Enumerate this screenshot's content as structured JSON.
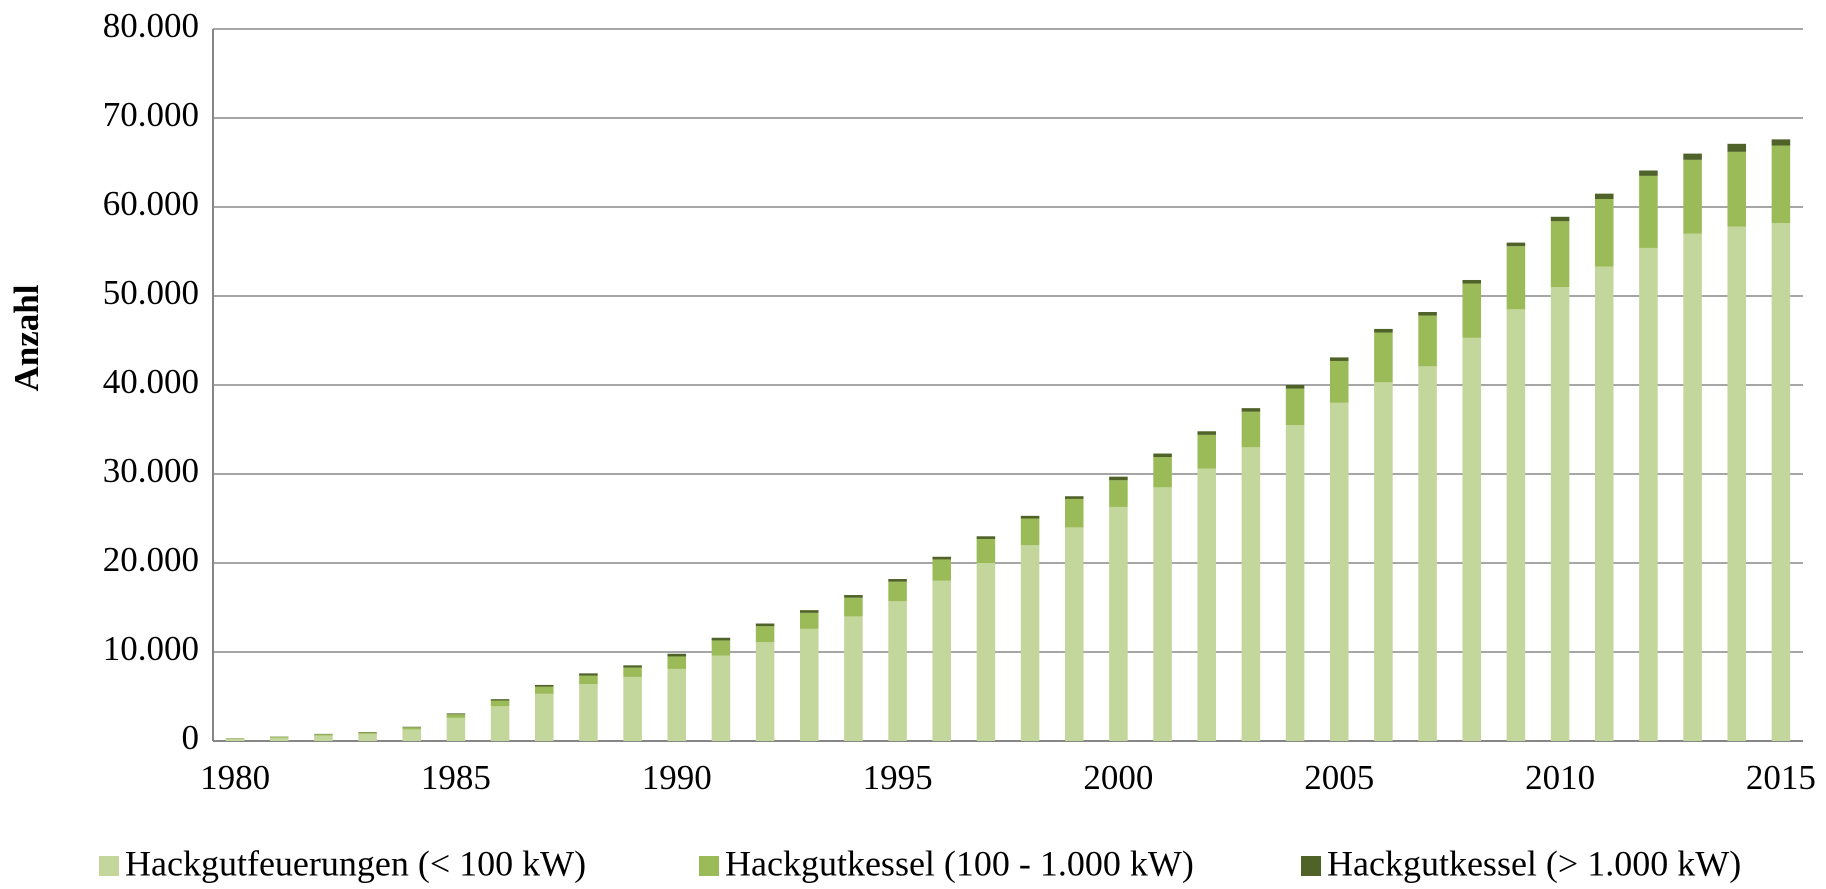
{
  "chart_data": {
    "type": "stacked_bar",
    "ylabel": "Anzahl",
    "categories": [
      "1980",
      null,
      null,
      null,
      null,
      "1985",
      null,
      null,
      null,
      null,
      "1990",
      null,
      null,
      null,
      null,
      "1995",
      null,
      null,
      null,
      null,
      "2000",
      null,
      null,
      null,
      null,
      "2005",
      null,
      null,
      null,
      null,
      "2010",
      null,
      null,
      null,
      null,
      "2015"
    ],
    "series": [
      {
        "name": "Hackgutfeuerungen (< 100 kW)",
        "color": "#c3d69b",
        "values": [
          200,
          350,
          600,
          800,
          1300,
          2600,
          3900,
          5300,
          6400,
          7200,
          8100,
          9600,
          11100,
          12600,
          14000,
          15700,
          18000,
          20000,
          22000,
          24000,
          26300,
          28500,
          30600,
          33000,
          35500,
          38000,
          40300,
          42100,
          45300,
          48500,
          51000,
          53300,
          55400,
          57000,
          57800,
          58200
        ]
      },
      {
        "name": "Hackgutkessel (100 - 1.000 kW)",
        "color": "#9bbb59",
        "values": [
          80,
          120,
          160,
          150,
          240,
          400,
          650,
          800,
          950,
          1050,
          1400,
          1700,
          1800,
          1800,
          2100,
          2200,
          2400,
          2700,
          3000,
          3200,
          3000,
          3400,
          3800,
          4000,
          4100,
          4700,
          5600,
          5700,
          6100,
          7100,
          7400,
          7600,
          8100,
          8300,
          8400,
          8700
        ]
      },
      {
        "name": "Hackgutkessel (> 1.000 kW)",
        "color": "#4f6228",
        "values": [
          20,
          30,
          40,
          50,
          60,
          100,
          150,
          200,
          250,
          250,
          300,
          300,
          300,
          300,
          300,
          300,
          300,
          300,
          300,
          300,
          400,
          400,
          400,
          400,
          400,
          400,
          400,
          400,
          400,
          400,
          500,
          600,
          600,
          700,
          900,
          700
        ]
      }
    ],
    "ylim": [
      0,
      80000
    ],
    "yticks": [
      0,
      {
        "value": 10000,
        "label": "10.000"
      },
      {
        "value": 20000,
        "label": "20.000"
      },
      {
        "value": 30000,
        "label": "30.000"
      },
      {
        "value": 40000,
        "label": "40.000"
      },
      {
        "value": 50000,
        "label": "50.000"
      },
      {
        "value": 60000,
        "label": "60.000"
      },
      {
        "value": 70000,
        "label": "70.000"
      },
      {
        "value": 80000,
        "label": "80.000"
      }
    ],
    "grid": true,
    "legend": "bottom"
  }
}
